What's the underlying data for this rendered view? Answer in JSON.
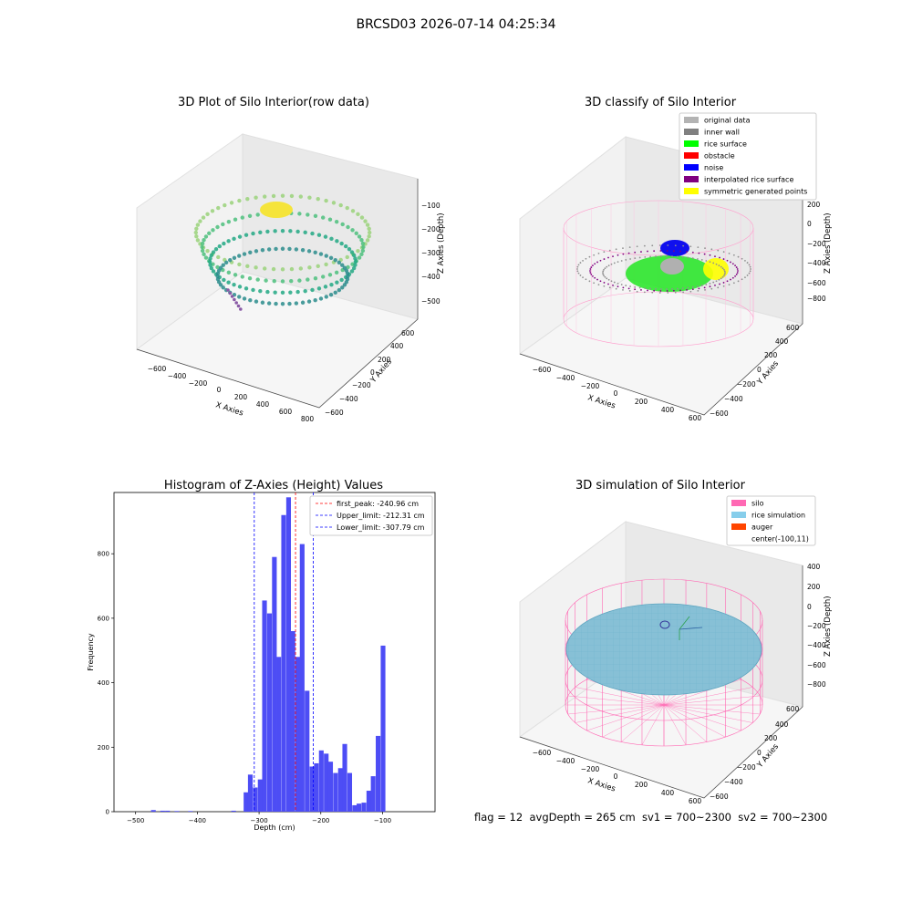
{
  "figure": {
    "suptitle": "BRCSD03 2026-07-14 04:25:34",
    "footer": "flag = 12  avgDepth = 265 cm  sv1 = 700~2300  sv2 = 700~2300"
  },
  "chart_data": [
    {
      "type": "scatter",
      "id": "raw",
      "title": "3D Plot of Silo Interior(row data)",
      "xlabel": "X Axies",
      "ylabel": "Y Axies",
      "zlabel": "Z Axies (Depth)",
      "xticks": [
        "−600",
        "−400",
        "−200",
        "0",
        "200",
        "400",
        "600",
        "800"
      ],
      "yticks": [
        "−600",
        "−400",
        "−200",
        "0",
        "200",
        "400",
        "600"
      ],
      "zticks": [
        "−100",
        "−200",
        "−300",
        "−400",
        "−500"
      ],
      "series": [
        {
          "ring_radius": 560,
          "z": -150,
          "color": "#9ad27a"
        },
        {
          "ring_radius": 520,
          "z": -230,
          "color": "#4cc07c"
        },
        {
          "ring_radius": 470,
          "z": -300,
          "color": "#22a884"
        },
        {
          "ring_radius": 420,
          "z": -330,
          "color": "#2a8c8c"
        }
      ]
    },
    {
      "type": "scatter",
      "id": "classify",
      "title": "3D classify of Silo Interior",
      "xlabel": "X Axies",
      "ylabel": "Y Axies",
      "zlabel": "Z Axies (Depth)",
      "xticks": [
        "−600",
        "−400",
        "−200",
        "0",
        "200",
        "400",
        "600"
      ],
      "yticks": [
        "−600",
        "−400",
        "−200",
        "0",
        "200",
        "400",
        "600"
      ],
      "zticks": [
        "200",
        "0",
        "−200",
        "−400",
        "−600",
        "−800"
      ],
      "legend": [
        {
          "label": "original data",
          "color": "#b3b3b3"
        },
        {
          "label": "inner wall",
          "color": "#808080"
        },
        {
          "label": "rice surface",
          "color": "#00ff00"
        },
        {
          "label": "obstacle",
          "color": "#ff0000"
        },
        {
          "label": "noise",
          "color": "#0000ff"
        },
        {
          "label": "interpolated rice surface",
          "color": "#800080"
        },
        {
          "label": "symmetric generated points",
          "color": "#ffff00"
        }
      ]
    },
    {
      "type": "bar",
      "id": "hist",
      "title": "Histogram of Z-Axies (Height) Values",
      "xlabel": "Depth (cm)",
      "ylabel": "Frequency",
      "xlim": [
        -535,
        -15
      ],
      "ylim": [
        0,
        990
      ],
      "xticks": [
        -500,
        -400,
        -300,
        -200,
        -100
      ],
      "yticks": [
        0,
        200,
        400,
        600,
        800
      ],
      "bin_width": 7.6,
      "bins": [
        [
          -475,
          5
        ],
        [
          -460,
          3
        ],
        [
          -452,
          3
        ],
        [
          -437,
          2
        ],
        [
          -415,
          2
        ],
        [
          -345,
          3
        ],
        [
          -325,
          60
        ],
        [
          -318,
          115
        ],
        [
          -310,
          75
        ],
        [
          -302,
          100
        ],
        [
          -295,
          655
        ],
        [
          -287,
          615
        ],
        [
          -279,
          790
        ],
        [
          -272,
          480
        ],
        [
          -264,
          920
        ],
        [
          -256,
          975
        ],
        [
          -249,
          560
        ],
        [
          -241,
          480
        ],
        [
          -234,
          830
        ],
        [
          -226,
          375
        ],
        [
          -218,
          140
        ],
        [
          -211,
          150
        ],
        [
          -203,
          190
        ],
        [
          -195,
          180
        ],
        [
          -188,
          155
        ],
        [
          -180,
          120
        ],
        [
          -172,
          135
        ],
        [
          -165,
          210
        ],
        [
          -157,
          120
        ],
        [
          -149,
          20
        ],
        [
          -142,
          25
        ],
        [
          -134,
          28
        ],
        [
          -126,
          65
        ],
        [
          -119,
          110
        ],
        [
          -111,
          235
        ],
        [
          -103,
          515
        ]
      ],
      "lines": [
        {
          "label": "first_peak: -240.96 cm",
          "x": -240.96,
          "color": "#ff0000"
        },
        {
          "label": "Upper_limit: -212.31 cm",
          "x": -212.31,
          "color": "#0000ff"
        },
        {
          "label": "Lower_limit: -307.79 cm",
          "x": -307.79,
          "color": "#0000ff"
        }
      ]
    },
    {
      "type": "scatter",
      "id": "sim",
      "title": "3D simulation of Silo Interior",
      "xlabel": "X Axies",
      "ylabel": "Y Axies",
      "zlabel": "Z Axies (Depth)",
      "xticks": [
        "−600",
        "−400",
        "−200",
        "0",
        "200",
        "400",
        "600"
      ],
      "yticks": [
        "−600",
        "−400",
        "−200",
        "0",
        "200",
        "400",
        "600"
      ],
      "zticks": [
        "400",
        "200",
        "0",
        "−200",
        "−400",
        "−600",
        "−800"
      ],
      "legend": [
        {
          "label": "silo",
          "color": "#ff69b4"
        },
        {
          "label": "rice simulation",
          "color": "#87ceeb"
        },
        {
          "label": "auger",
          "color": "#ff4500"
        },
        {
          "label": "center(-100,11)",
          "color": ""
        }
      ]
    }
  ]
}
